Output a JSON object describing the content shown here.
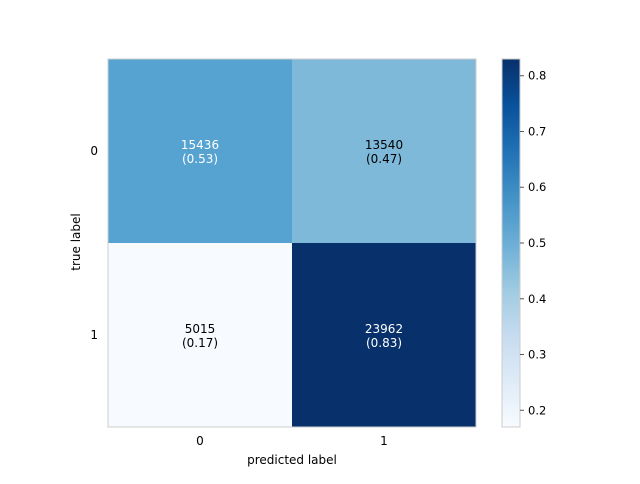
{
  "chart_data": {
    "type": "heatmap",
    "title": "",
    "xlabel": "predicted label",
    "ylabel": "true label",
    "x_categories": [
      "0",
      "1"
    ],
    "y_categories": [
      "0",
      "1"
    ],
    "counts": [
      [
        15436,
        13540
      ],
      [
        5015,
        23962
      ]
    ],
    "normalized": [
      [
        0.53,
        0.47
      ],
      [
        0.17,
        0.83
      ]
    ],
    "cell_labels": [
      [
        "15436\n(0.53)",
        "13540\n(0.47)"
      ],
      [
        "5015\n(0.17)",
        "23962\n(0.83)"
      ]
    ],
    "colormap": "Blues",
    "colorbar": {
      "range": [
        0.17,
        0.83
      ],
      "ticks": [
        0.2,
        0.3,
        0.4,
        0.5,
        0.6,
        0.7,
        0.8
      ]
    },
    "grid": false,
    "legend": "none",
    "colors": {
      "cell_0_0": "#56a3d1",
      "cell_0_1": "#7fb9da",
      "cell_1_0": "#f7fbff",
      "cell_1_1": "#08306b",
      "text_dark": "#000000",
      "text_light": "#ffffff",
      "axis": "#cccccc"
    }
  }
}
